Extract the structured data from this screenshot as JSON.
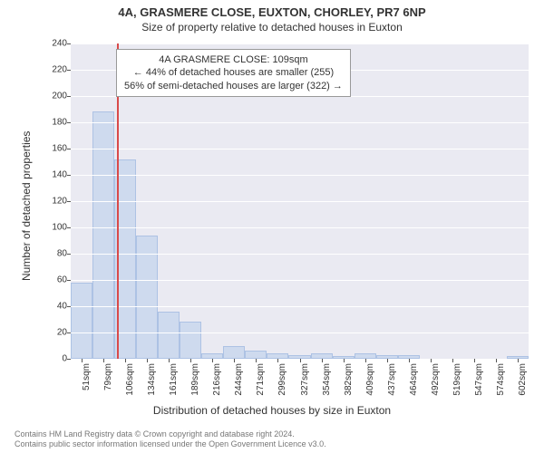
{
  "title_main": "4A, GRASMERE CLOSE, EUXTON, CHORLEY, PR7 6NP",
  "title_sub": "Size of property relative to detached houses in Euxton",
  "y_axis_label": "Number of detached properties",
  "x_axis_label": "Distribution of detached houses by size in Euxton",
  "chart": {
    "type": "histogram",
    "background_color": "#eaeaf2",
    "grid_color": "#ffffff",
    "bar_fill": "#cedaee",
    "bar_border": "#adc2e4",
    "marker_color": "#d94a4a",
    "ylim": [
      0,
      240
    ],
    "ytick_step": 20,
    "x_categories": [
      "51sqm",
      "79sqm",
      "106sqm",
      "134sqm",
      "161sqm",
      "189sqm",
      "216sqm",
      "244sqm",
      "271sqm",
      "299sqm",
      "327sqm",
      "354sqm",
      "382sqm",
      "409sqm",
      "437sqm",
      "464sqm",
      "492sqm",
      "519sqm",
      "547sqm",
      "574sqm",
      "602sqm"
    ],
    "bar_values": [
      58,
      188,
      152,
      94,
      36,
      28,
      4,
      10,
      6,
      4,
      3,
      4,
      2,
      4,
      3,
      3,
      0,
      0,
      0,
      0,
      2
    ],
    "marker_bin_index": 2,
    "marker_fraction_in_bin": 0.11
  },
  "info_box": {
    "line1": "4A GRASMERE CLOSE: 109sqm",
    "line2": "← 44% of detached houses are smaller (255)",
    "line3": "56% of semi-detached houses are larger (322) →"
  },
  "footer": {
    "line1": "Contains HM Land Registry data © Crown copyright and database right 2024.",
    "line2": "Contains public sector information licensed under the Open Government Licence v3.0."
  },
  "style": {
    "title_fontsize": 13,
    "sub_fontsize": 12,
    "axis_label_fontsize": 12,
    "tick_fontsize": 10,
    "info_fontsize": 11,
    "footer_fontsize": 9
  }
}
